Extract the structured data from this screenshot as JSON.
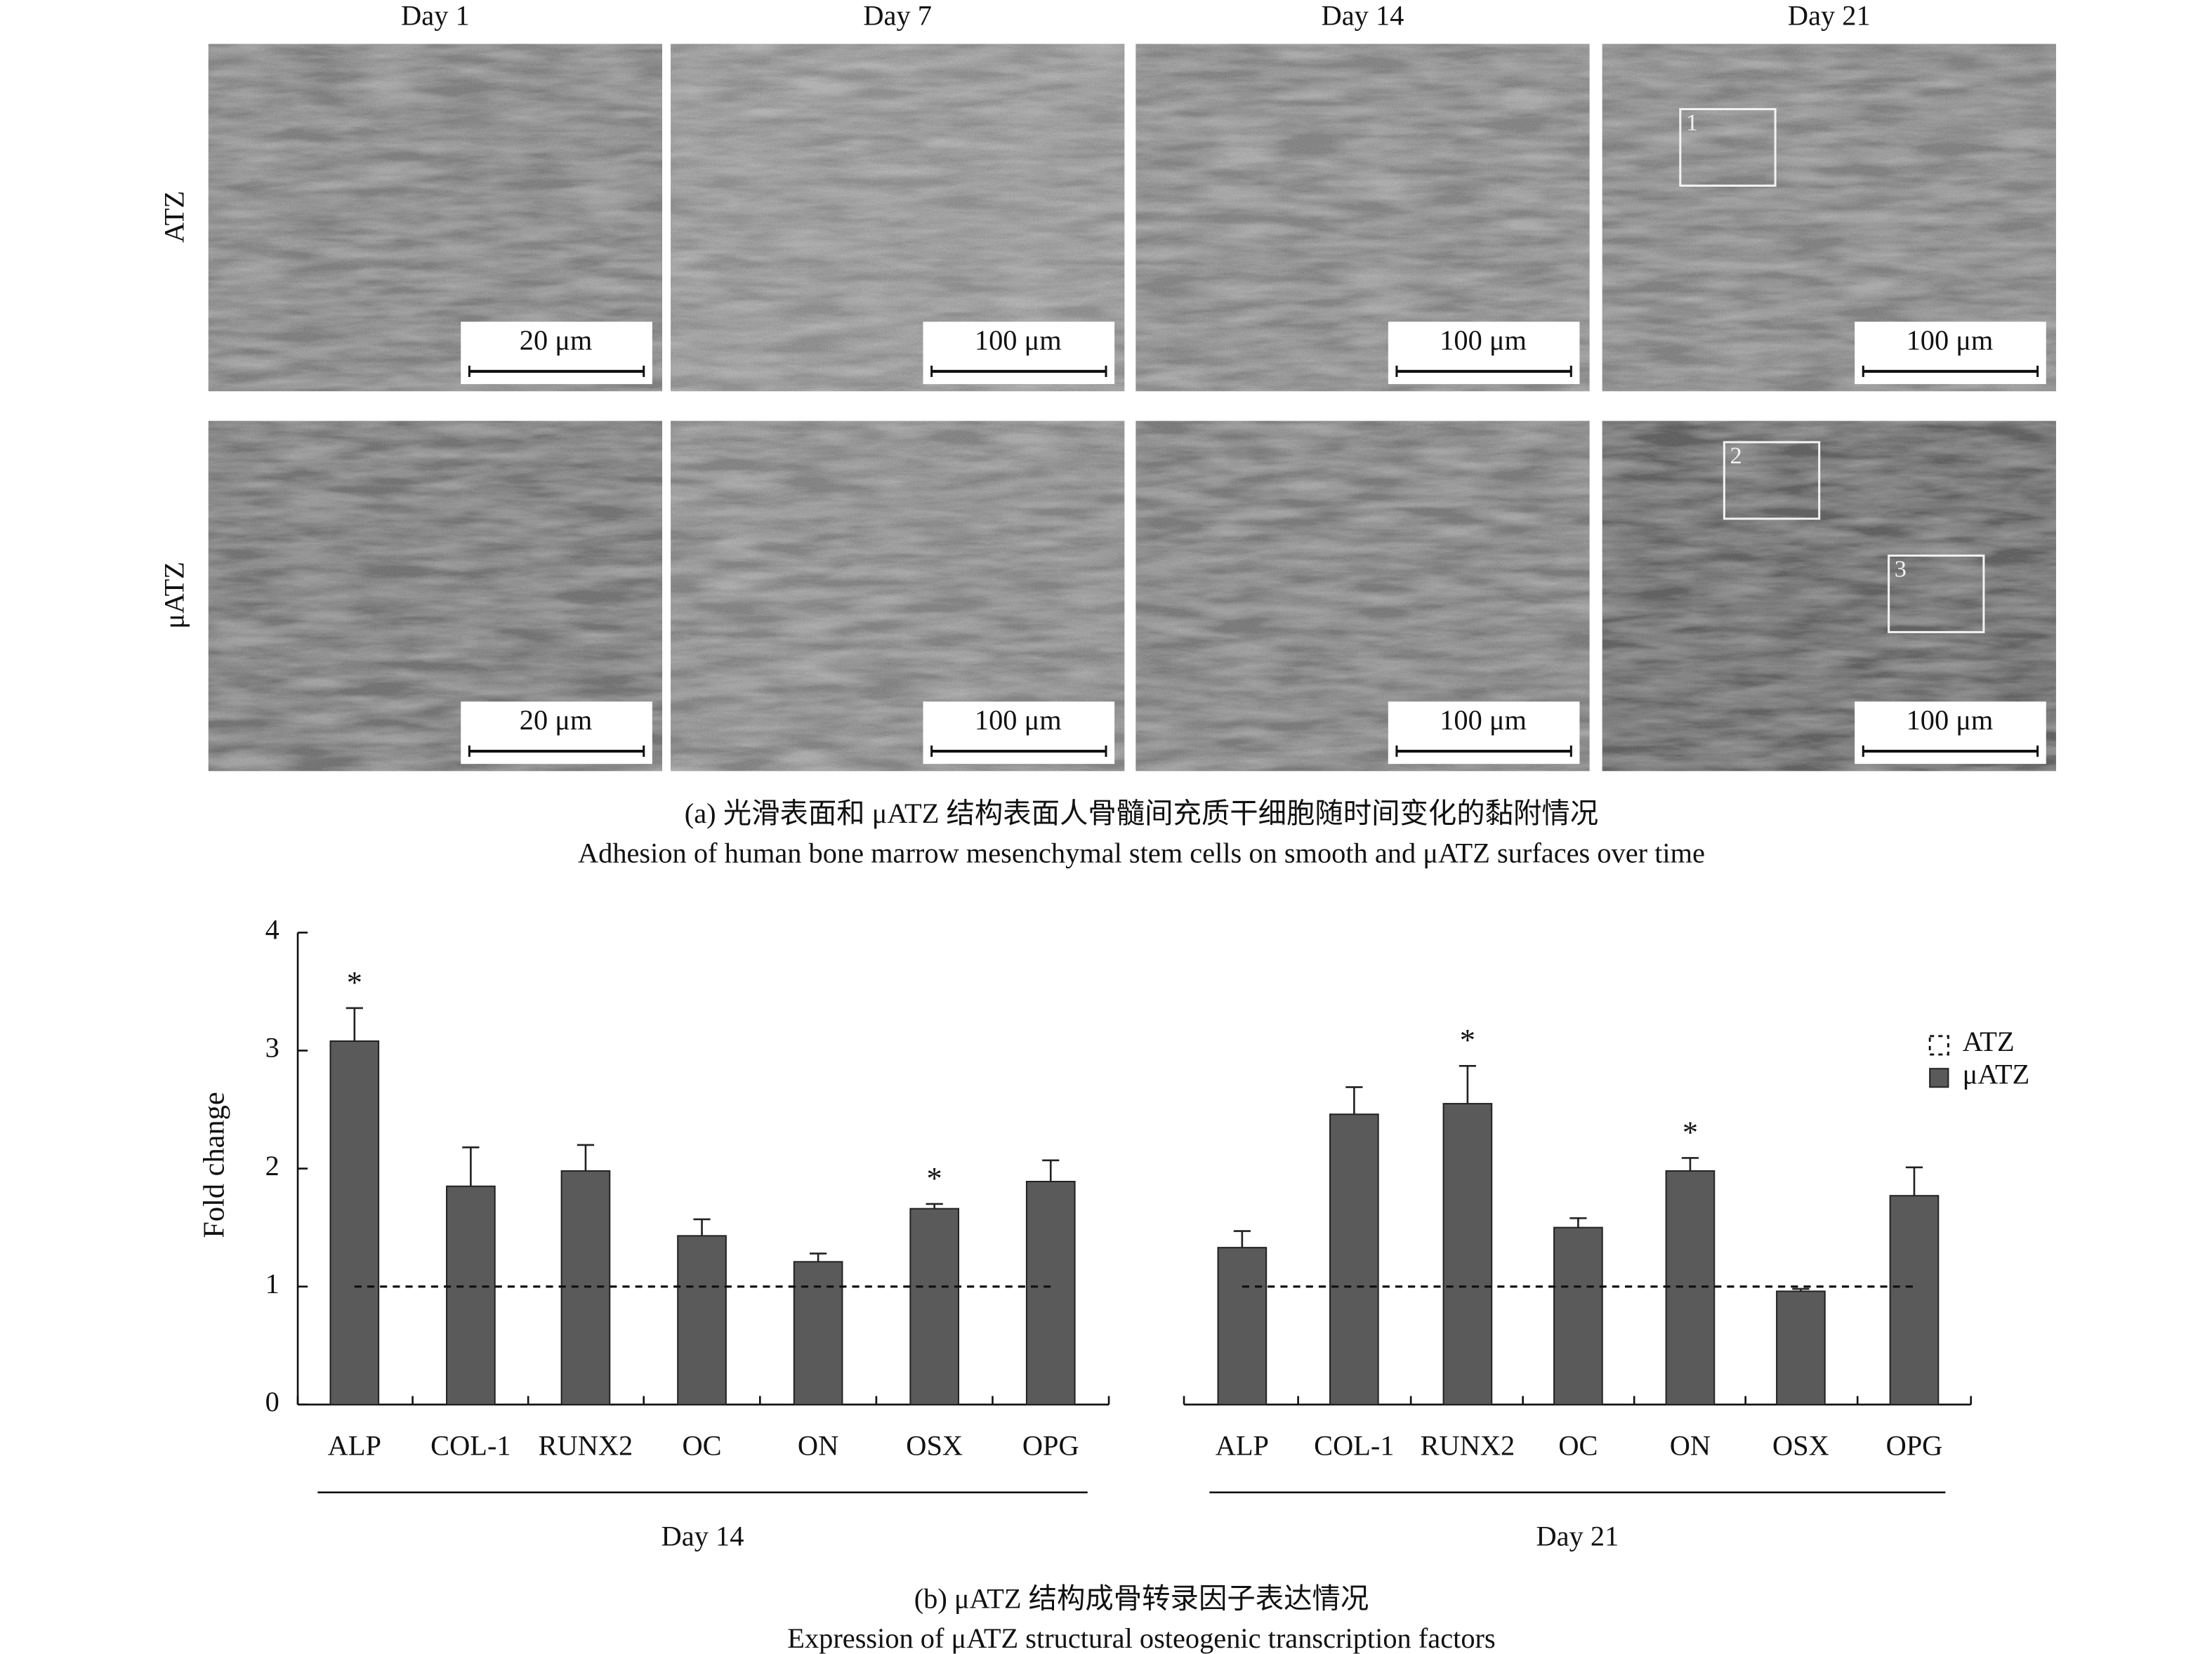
{
  "panel_a": {
    "column_labels": [
      "Day 1",
      "Day 7",
      "Day 14",
      "Day 21"
    ],
    "row_labels": [
      "ATZ",
      "μATZ"
    ],
    "scale_bars": [
      [
        "20 μm",
        "100 μm",
        "100 μm",
        "100 μm"
      ],
      [
        "20 μm",
        "100 μm",
        "100 μm",
        "100 μm"
      ]
    ],
    "region_labels": [
      "1",
      "2",
      "3"
    ],
    "caption_cn": "(a) 光滑表面和 μATZ 结构表面人骨髓间充质干细胞随时间变化的黏附情况",
    "caption_en": "Adhesion of human bone marrow mesenchymal stem cells on smooth and μATZ surfaces over time"
  },
  "chart_data": {
    "type": "bar",
    "ylabel": "Fold change",
    "ylim": [
      0,
      4
    ],
    "yticks": [
      0,
      1,
      2,
      3,
      4
    ],
    "groups": [
      "Day 14",
      "Day 21"
    ],
    "categories": [
      "ALP",
      "COL-1",
      "RUNX2",
      "OC",
      "ON",
      "OSX",
      "OPG"
    ],
    "series": [
      {
        "name": "ATZ",
        "style": "dashed",
        "color": "#111111",
        "values": [
          [
            1,
            1,
            1,
            1,
            1,
            1,
            1
          ],
          [
            1,
            1,
            1,
            1,
            1,
            1,
            1
          ]
        ]
      },
      {
        "name": "μATZ",
        "color": "#5a5a5a",
        "values": [
          [
            3.08,
            1.85,
            1.98,
            1.43,
            1.21,
            1.66,
            1.89
          ],
          [
            1.33,
            2.46,
            2.55,
            1.5,
            1.98,
            0.96,
            1.77
          ]
        ],
        "errors": [
          [
            0.28,
            0.33,
            0.22,
            0.14,
            0.07,
            0.04,
            0.18
          ],
          [
            0.14,
            0.23,
            0.32,
            0.08,
            0.11,
            0.02,
            0.24
          ]
        ],
        "markers": [
          [
            "*",
            null,
            null,
            null,
            null,
            "*",
            null
          ],
          [
            null,
            null,
            "*",
            null,
            "*",
            null,
            null
          ]
        ]
      }
    ],
    "caption_cn": "(b) μATZ 结构成骨转录因子表达情况",
    "caption_en": "Expression of μATZ structural osteogenic transcription factors"
  }
}
